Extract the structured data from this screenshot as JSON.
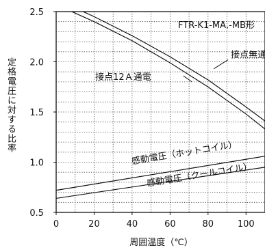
{
  "chart_data": {
    "type": "line",
    "title": "FTR-K1-MA,-MB形",
    "xlabel": "周囲温度（℃）",
    "ylabel": "定格電圧に対する比率",
    "xlim": [
      0,
      110
    ],
    "ylim": [
      0.5,
      2.5
    ],
    "x_ticks": [
      0,
      20,
      40,
      60,
      80,
      100
    ],
    "y_ticks": [
      "0.5",
      "1.0",
      "1.5",
      "2.0",
      "2.5"
    ],
    "grid": true,
    "series": [
      {
        "name": "接点無通電",
        "x": [
          0,
          20,
          40,
          60,
          80,
          100,
          110
        ],
        "y": [
          2.62,
          2.45,
          2.26,
          2.05,
          1.82,
          1.55,
          1.41
        ]
      },
      {
        "name": "接点12Ａ通電",
        "x": [
          0,
          20,
          40,
          60,
          80,
          100,
          110
        ],
        "y": [
          2.57,
          2.4,
          2.21,
          1.99,
          1.75,
          1.48,
          1.33
        ]
      },
      {
        "name": "感動電圧（ホットコイル）",
        "x": [
          0,
          110
        ],
        "y": [
          0.72,
          1.06
        ]
      },
      {
        "name": "感動電圧（クールコイル）",
        "x": [
          0,
          110
        ],
        "y": [
          0.64,
          0.95
        ]
      }
    ],
    "annotations": [
      {
        "text": "接点無通電",
        "x": 92,
        "y": 2.04
      },
      {
        "text": "接点12Ａ通電",
        "x": 50,
        "y": 1.82
      },
      {
        "text": "感動電圧（ホットコイル）",
        "x": 40,
        "y": 0.98
      },
      {
        "text": "感動電圧（クールコイル）",
        "x": 48,
        "y": 0.76
      }
    ]
  }
}
